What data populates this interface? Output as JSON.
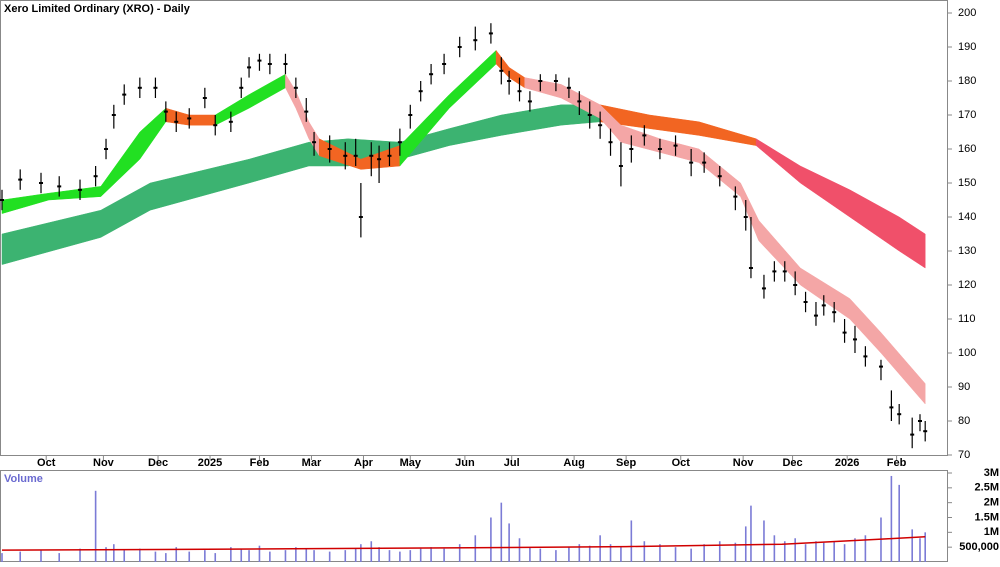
{
  "chart_data": [
    {
      "type": "candlestick",
      "title": "Xero Limited Ordinary (XRO) - Daily",
      "xlim": [
        0,
        363
      ],
      "ylim": [
        70,
        200
      ],
      "yticks": [
        70,
        80,
        90,
        100,
        110,
        120,
        130,
        140,
        150,
        160,
        170,
        180,
        190,
        200
      ],
      "xticks": [
        {
          "value": 17,
          "label": "Oct"
        },
        {
          "value": 39,
          "label": "Nov"
        },
        {
          "value": 60,
          "label": "Dec"
        },
        {
          "value": 80,
          "label": "2025"
        },
        {
          "value": 99,
          "label": "Feb"
        },
        {
          "value": 119,
          "label": "Mar"
        },
        {
          "value": 139,
          "label": "Apr"
        },
        {
          "value": 157,
          "label": "May"
        },
        {
          "value": 178,
          "label": "Jun"
        },
        {
          "value": 196,
          "label": "Jul"
        },
        {
          "value": 220,
          "label": "Aug"
        },
        {
          "value": 240,
          "label": "Sep"
        },
        {
          "value": 261,
          "label": "Oct"
        },
        {
          "value": 285,
          "label": "Nov"
        },
        {
          "value": 304,
          "label": "Dec"
        },
        {
          "value": 325,
          "label": "2026"
        },
        {
          "value": 344,
          "label": "Feb"
        }
      ],
      "color": "#000000",
      "x": [
        0,
        7,
        15,
        22,
        30,
        36,
        40,
        43,
        47,
        53,
        59,
        63,
        67,
        72,
        78,
        82,
        88,
        92,
        95,
        99,
        103,
        109,
        113,
        117,
        120,
        126,
        132,
        136,
        138,
        142,
        145,
        149,
        153,
        157,
        161,
        165,
        170,
        176,
        182,
        188,
        192,
        195,
        199,
        203,
        207,
        213,
        218,
        222,
        226,
        230,
        234,
        238,
        242,
        247,
        253,
        259,
        265,
        270,
        276,
        282,
        286,
        288,
        293,
        297,
        301,
        305,
        309,
        313,
        316,
        320,
        324,
        328,
        332,
        338,
        342,
        345,
        350,
        353,
        355
      ],
      "high": [
        148,
        154,
        153,
        152,
        151,
        155,
        163,
        173,
        179,
        181,
        181,
        174,
        171,
        172,
        178,
        170,
        171,
        181,
        187,
        188,
        188,
        188,
        181,
        175,
        165,
        164,
        162,
        163,
        150,
        162,
        161,
        162,
        166,
        173,
        180,
        185,
        188,
        193,
        196,
        197,
        187,
        183,
        181,
        177,
        182,
        182,
        181,
        177,
        174,
        171,
        166,
        162,
        164,
        167,
        163,
        164,
        160,
        159,
        155,
        149,
        145,
        140,
        123,
        127,
        127,
        124,
        118,
        115,
        117,
        115,
        110,
        108,
        102,
        98,
        89,
        85,
        81,
        82,
        80
      ],
      "low": [
        142,
        148,
        147,
        146,
        145,
        149,
        157,
        166,
        173,
        175,
        175,
        168,
        165,
        166,
        172,
        164,
        165,
        175,
        181,
        183,
        182,
        182,
        175,
        168,
        158,
        156,
        154,
        155,
        134,
        152,
        150,
        155,
        158,
        166,
        174,
        179,
        182,
        187,
        189,
        191,
        179,
        176,
        174,
        171,
        177,
        177,
        175,
        170,
        166,
        163,
        158,
        149,
        156,
        161,
        157,
        158,
        152,
        153,
        149,
        142,
        136,
        122,
        116,
        121,
        121,
        117,
        112,
        108,
        111,
        109,
        103,
        100,
        96,
        92,
        80,
        79,
        72,
        77,
        74
      ],
      "close": [
        145,
        151,
        150,
        149,
        148,
        152,
        160,
        170,
        176,
        178,
        178,
        171,
        168,
        169,
        175,
        167,
        168,
        178,
        184,
        186,
        185,
        185,
        178,
        171,
        162,
        160,
        158,
        158,
        140,
        158,
        157,
        158,
        162,
        170,
        177,
        182,
        185,
        190,
        192,
        194,
        183,
        180,
        177,
        174,
        180,
        180,
        178,
        174,
        170,
        167,
        162,
        155,
        160,
        164,
        160,
        161,
        156,
        156,
        152,
        146,
        140,
        125,
        119,
        124,
        124,
        120,
        115,
        111,
        114,
        112,
        106,
        104,
        99,
        96,
        84,
        82,
        76,
        80,
        77
      ],
      "bands": [
        {
          "color": "#3cb371",
          "x": [
            0,
            38,
            57,
            95,
            118,
            133,
            153,
            172,
            192,
            215,
            230
          ],
          "upper": [
            135,
            142,
            150,
            157,
            162,
            163,
            162,
            166,
            170,
            173,
            173
          ],
          "lower": [
            126,
            134,
            142,
            150,
            155,
            155,
            157,
            161,
            164,
            167,
            168
          ]
        },
        {
          "color": "#f26522",
          "x": [
            230,
            249,
            268,
            290
          ],
          "upper": [
            173,
            170,
            168,
            163
          ],
          "lower": [
            168,
            166,
            164,
            161
          ]
        },
        {
          "color": "#f0506a",
          "x": [
            290,
            307,
            326,
            345,
            355
          ],
          "upper": [
            163,
            155,
            148,
            140,
            135
          ],
          "lower": [
            161,
            150,
            140,
            130,
            125
          ]
        },
        {
          "color": "#22e022",
          "x": [
            0,
            18,
            38,
            53,
            63
          ],
          "upper": [
            145,
            147,
            149,
            165,
            172
          ],
          "lower": [
            141,
            145,
            146,
            157,
            168
          ]
        },
        {
          "color": "#f26522",
          "x": [
            63,
            72,
            82
          ],
          "upper": [
            172,
            170,
            170
          ],
          "lower": [
            168,
            167,
            167
          ]
        },
        {
          "color": "#22e022",
          "x": [
            82,
            95,
            109
          ],
          "upper": [
            170,
            176,
            182
          ],
          "lower": [
            167,
            172,
            178
          ]
        },
        {
          "color": "#f4a6a6",
          "x": [
            109,
            113,
            118,
            122
          ],
          "upper": [
            182,
            177,
            168,
            163
          ],
          "lower": [
            178,
            172,
            163,
            158
          ]
        },
        {
          "color": "#f26522",
          "x": [
            122,
            138,
            153
          ],
          "upper": [
            163,
            157,
            161
          ],
          "lower": [
            158,
            154,
            155
          ]
        },
        {
          "color": "#22e022",
          "x": [
            153,
            172,
            190
          ],
          "upper": [
            161,
            176,
            189
          ],
          "lower": [
            155,
            172,
            185
          ]
        },
        {
          "color": "#f26522",
          "x": [
            190,
            195,
            201
          ],
          "upper": [
            189,
            184,
            181
          ],
          "lower": [
            185,
            181,
            178
          ]
        },
        {
          "color": "#f4a6a6",
          "x": [
            201,
            215,
            230,
            238,
            253,
            268,
            284,
            291,
            307,
            326,
            338,
            355
          ],
          "upper": [
            181,
            179,
            173,
            167,
            163,
            160,
            150,
            139,
            125,
            116,
            106,
            91
          ],
          "lower": [
            178,
            175,
            169,
            162,
            159,
            156,
            146,
            133,
            120,
            110,
            100,
            85
          ]
        }
      ]
    },
    {
      "type": "volume",
      "title": "Volume",
      "xlim": [
        0,
        363
      ],
      "ylim": [
        0,
        3000000
      ],
      "yticks": [
        {
          "value": 500000,
          "label": "500,000"
        },
        {
          "value": 1000000,
          "label": "1M"
        },
        {
          "value": 1500000,
          "label": "1.5M"
        },
        {
          "value": 2000000,
          "label": "2M"
        },
        {
          "value": 2500000,
          "label": "2.5M"
        },
        {
          "value": 3000000,
          "label": "3M"
        }
      ],
      "color": "#7b7bd6",
      "x": [
        0,
        7,
        15,
        22,
        30,
        36,
        40,
        43,
        47,
        53,
        59,
        63,
        67,
        72,
        78,
        82,
        88,
        92,
        95,
        99,
        103,
        109,
        113,
        117,
        120,
        126,
        132,
        136,
        138,
        142,
        145,
        149,
        153,
        157,
        161,
        165,
        170,
        176,
        182,
        188,
        192,
        195,
        199,
        203,
        207,
        213,
        218,
        222,
        226,
        230,
        234,
        238,
        242,
        247,
        253,
        259,
        265,
        270,
        276,
        282,
        286,
        288,
        293,
        297,
        301,
        305,
        309,
        313,
        316,
        320,
        324,
        328,
        332,
        338,
        342,
        345,
        350,
        353,
        355
      ],
      "values": [
        300000,
        350000,
        400000,
        300000,
        450000,
        2400000,
        500000,
        600000,
        400000,
        450000,
        350000,
        300000,
        500000,
        350000,
        400000,
        300000,
        500000,
        450000,
        400000,
        550000,
        350000,
        400000,
        500000,
        450000,
        400000,
        350000,
        400000,
        450000,
        600000,
        700000,
        500000,
        400000,
        350000,
        400000,
        450000,
        500000,
        450000,
        600000,
        900000,
        1500000,
        2000000,
        1300000,
        800000,
        500000,
        450000,
        400000,
        500000,
        600000,
        550000,
        900000,
        600000,
        500000,
        1400000,
        700000,
        600000,
        500000,
        450000,
        600000,
        700000,
        650000,
        1200000,
        1900000,
        1400000,
        900000,
        700000,
        800000,
        600000,
        700000,
        650000,
        700000,
        600000,
        800000,
        900000,
        1500000,
        2900000,
        2600000,
        1100000,
        800000,
        1000000
      ],
      "average": {
        "color": "#d00000",
        "x": [
          0,
          60,
          120,
          180,
          240,
          300,
          340,
          355
        ],
        "values": [
          400000,
          420000,
          450000,
          480000,
          520000,
          600000,
          780000,
          850000
        ]
      }
    }
  ]
}
